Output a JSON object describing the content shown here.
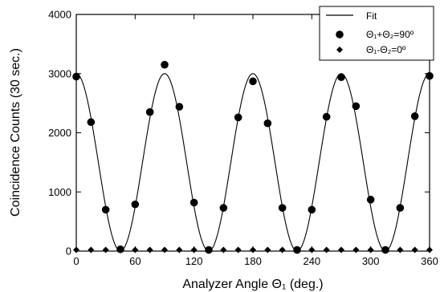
{
  "chart_data": {
    "type": "scatter",
    "xlabel": "Analyzer Angle  Θ₁ (deg.)",
    "ylabel": "Coincidence Counts (30 sec.)",
    "xlim": [
      0,
      360
    ],
    "ylim": [
      0,
      4000
    ],
    "xticks": [
      0,
      60,
      120,
      180,
      240,
      300,
      360
    ],
    "yticks": [
      0,
      1000,
      2000,
      3000,
      4000
    ],
    "grid": false,
    "legend_position": "top-right",
    "legend": [
      {
        "label": "Fit",
        "marker": "line"
      },
      {
        "label": "Θ₁+Θ₂=90º",
        "marker": "circle"
      },
      {
        "label": "Θ₁-Θ₂=0º",
        "marker": "diamond"
      }
    ],
    "series": [
      {
        "name": "Fit",
        "kind": "curve",
        "formula": "1500 + 1500*cos(4*theta)",
        "color": "#000000"
      },
      {
        "name": "Θ₁+Θ₂=90º",
        "kind": "scatter",
        "marker": "circle",
        "color": "#000000",
        "x": [
          0,
          15,
          30,
          45,
          60,
          75,
          90,
          105,
          120,
          135,
          150,
          165,
          180,
          195,
          210,
          225,
          240,
          255,
          270,
          285,
          300,
          315,
          330,
          345,
          360
        ],
        "y": [
          2950,
          2180,
          700,
          30,
          790,
          2350,
          3150,
          2440,
          820,
          20,
          730,
          2260,
          2870,
          2160,
          730,
          20,
          700,
          2270,
          2940,
          2450,
          870,
          20,
          730,
          2280,
          2960
        ]
      },
      {
        "name": "Θ₁-Θ₂=0º",
        "kind": "scatter",
        "marker": "diamond",
        "color": "#000000",
        "x": [
          0,
          15,
          30,
          45,
          60,
          75,
          90,
          105,
          120,
          135,
          150,
          165,
          180,
          195,
          210,
          225,
          240,
          255,
          270,
          285,
          300,
          315,
          330,
          345,
          360
        ],
        "y": [
          20,
          20,
          20,
          20,
          20,
          20,
          20,
          20,
          20,
          20,
          20,
          20,
          20,
          20,
          20,
          20,
          20,
          20,
          20,
          20,
          20,
          20,
          20,
          20,
          20
        ]
      }
    ]
  }
}
